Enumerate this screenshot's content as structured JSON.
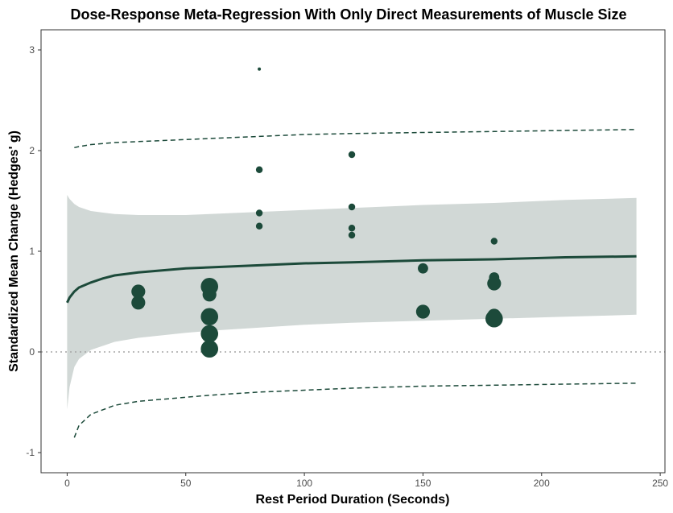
{
  "chart_data": {
    "type": "scatter",
    "title": "Dose-Response Meta-Regression With Only Direct Measurements of Muscle Size",
    "xlabel": "Rest Period Duration (Seconds)",
    "ylabel": "Standardized Mean Change (Hedges' g)",
    "xlim": [
      -11,
      252
    ],
    "ylim": [
      -1.2,
      3.2
    ],
    "x_ticks": [
      0,
      50,
      100,
      150,
      200,
      250
    ],
    "y_ticks": [
      -1,
      0,
      1,
      2,
      3
    ],
    "grid": false,
    "legend": "none",
    "reference_line": {
      "y": 0,
      "style": "dotted"
    },
    "colors": {
      "points": "#1c4a3a",
      "fit_line": "#1c4a3a",
      "confidence_band": "#d1d8d6",
      "prediction_interval": "#1c4a3a",
      "reference_line": "#a6a6a6"
    },
    "points": [
      {
        "x": 30,
        "y": 0.6,
        "weight": 3
      },
      {
        "x": 30,
        "y": 0.49,
        "weight": 3
      },
      {
        "x": 60,
        "y": 0.65,
        "weight": 4
      },
      {
        "x": 60,
        "y": 0.57,
        "weight": 3
      },
      {
        "x": 60,
        "y": 0.35,
        "weight": 4
      },
      {
        "x": 60,
        "y": 0.18,
        "weight": 4
      },
      {
        "x": 60,
        "y": 0.03,
        "weight": 4
      },
      {
        "x": 81,
        "y": 2.81,
        "weight": 0
      },
      {
        "x": 81,
        "y": 1.81,
        "weight": 1
      },
      {
        "x": 81,
        "y": 1.38,
        "weight": 1
      },
      {
        "x": 81,
        "y": 1.25,
        "weight": 1
      },
      {
        "x": 120,
        "y": 1.96,
        "weight": 1
      },
      {
        "x": 120,
        "y": 1.44,
        "weight": 1
      },
      {
        "x": 120,
        "y": 1.23,
        "weight": 1
      },
      {
        "x": 120,
        "y": 1.16,
        "weight": 1
      },
      {
        "x": 150,
        "y": 0.83,
        "weight": 2
      },
      {
        "x": 150,
        "y": 0.4,
        "weight": 3
      },
      {
        "x": 180,
        "y": 1.1,
        "weight": 1
      },
      {
        "x": 180,
        "y": 0.74,
        "weight": 2
      },
      {
        "x": 180,
        "y": 0.68,
        "weight": 3
      },
      {
        "x": 180,
        "y": 0.36,
        "weight": 3
      },
      {
        "x": 180,
        "y": 0.33,
        "weight": 4
      }
    ],
    "fit_line": {
      "x": [
        0,
        1,
        2,
        3,
        5,
        10,
        15,
        20,
        30,
        40,
        50,
        60,
        80,
        100,
        120,
        150,
        180,
        210,
        240
      ],
      "y": [
        0.49,
        0.54,
        0.57,
        0.6,
        0.64,
        0.69,
        0.73,
        0.76,
        0.79,
        0.81,
        0.83,
        0.84,
        0.86,
        0.88,
        0.89,
        0.91,
        0.92,
        0.94,
        0.95
      ]
    },
    "confidence_band": {
      "x": [
        0,
        1,
        3,
        5,
        10,
        20,
        30,
        50,
        60,
        80,
        100,
        120,
        150,
        180,
        210,
        240
      ],
      "upper": [
        1.56,
        1.52,
        1.47,
        1.44,
        1.4,
        1.37,
        1.36,
        1.36,
        1.37,
        1.39,
        1.41,
        1.43,
        1.46,
        1.48,
        1.51,
        1.53
      ],
      "lower": [
        -0.57,
        -0.35,
        -0.15,
        -0.07,
        0.02,
        0.1,
        0.14,
        0.19,
        0.21,
        0.24,
        0.27,
        0.29,
        0.31,
        0.33,
        0.35,
        0.37
      ]
    },
    "prediction_interval": {
      "x": [
        3,
        5,
        10,
        20,
        30,
        50,
        60,
        80,
        100,
        120,
        150,
        180,
        210,
        240
      ],
      "upper": [
        2.03,
        2.04,
        2.06,
        2.08,
        2.09,
        2.11,
        2.12,
        2.14,
        2.16,
        2.17,
        2.18,
        2.19,
        2.2,
        2.21
      ],
      "lower": [
        -0.85,
        -0.73,
        -0.62,
        -0.53,
        -0.49,
        -0.45,
        -0.43,
        -0.4,
        -0.38,
        -0.36,
        -0.34,
        -0.33,
        -0.32,
        -0.31
      ]
    }
  }
}
